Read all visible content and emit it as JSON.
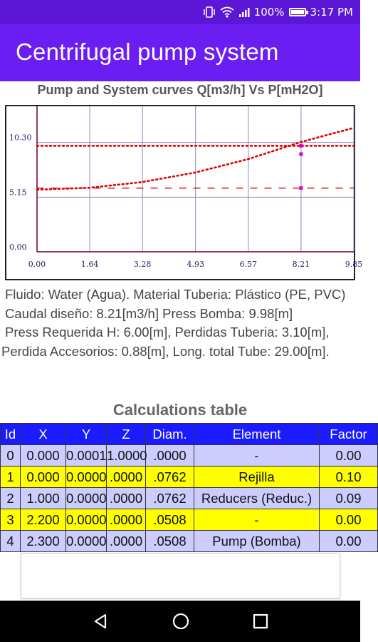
{
  "status_bar": {
    "battery": "100%",
    "time": "3:17 PM",
    "icons": [
      "vibrate-icon",
      "wifi-icon",
      "signal-icon",
      "battery-charging-icon"
    ]
  },
  "app_bar": {
    "title": "Centrifugal pump system"
  },
  "chart_data": {
    "type": "line",
    "title": "Pump and System curves Q[m3/h] Vs P[mH2O]",
    "x_ticks": [
      "0.00",
      "1.64",
      "3.28",
      "4.93",
      "6.57",
      "8.21",
      "9.85"
    ],
    "y_ticks": [
      "0.00",
      "5.15",
      "10.30"
    ],
    "xlim": [
      0,
      9.85
    ],
    "ylim": [
      0,
      13.7
    ],
    "series": [
      {
        "style": "dotted",
        "color": "#dd0000",
        "x": [
          0,
          1.64,
          3.28,
          4.93,
          6.57,
          8.21,
          9.85
        ],
        "y": [
          9.98,
          9.98,
          9.98,
          9.98,
          9.98,
          9.98,
          9.98
        ]
      },
      {
        "style": "dotted",
        "color": "#dd0000",
        "x": [
          0,
          1.64,
          3.28,
          4.93,
          6.57,
          8.21,
          9.85
        ],
        "y": [
          5.85,
          6.03,
          6.57,
          7.47,
          8.73,
          10.34,
          11.67
        ]
      },
      {
        "style": "dashed",
        "color": "#dd0000",
        "x": [
          0,
          9.85
        ],
        "y": [
          6.0,
          6.0
        ]
      }
    ],
    "markers": [
      {
        "color": "#dd00dd",
        "x": 8.21,
        "y": 9.98
      },
      {
        "color": "#dd00dd",
        "x": 8.21,
        "y": 9.2
      },
      {
        "color": "#dd00dd",
        "x": 8.21,
        "y": 6.0
      }
    ],
    "grid": true
  },
  "info": {
    "line1": "Fluido: Water (Agua). Material Tuberia: Plástico (PE, PVC)",
    "line2": "Caudal diseño: 8.21[m3/h] Press Bomba: 9.98[m]",
    "line3": "Press Requerida H: 6.00[m], Perdidas Tuberia: 3.10[m], Perdida Accesorios: 0.88[m], Long. total Tube: 29.00[m]."
  },
  "table": {
    "title": "Calculations table",
    "headers": [
      "Id",
      "X",
      "Y",
      "Z",
      "Diam.",
      "Element",
      "Factor"
    ],
    "rows": [
      [
        "0",
        "0.000",
        "0.0001",
        "1.0000",
        ".0000",
        "-",
        "0.00"
      ],
      [
        "1",
        "0.000",
        "0.0000",
        ".0000",
        ".0762",
        "Rejilla",
        "0.10"
      ],
      [
        "2",
        "1.000",
        "0.0000",
        ".0000",
        ".0762",
        "Reducers (Reduc.)",
        "0.09"
      ],
      [
        "3",
        "2.200",
        "0.0000",
        ".0000",
        ".0508",
        "-",
        "0.00"
      ],
      [
        "4",
        "2.300",
        "0.0000",
        ".0000",
        ".0508",
        "Pump (Bomba)",
        "0.00"
      ]
    ]
  },
  "nav_bar": {
    "buttons": [
      "back-icon",
      "home-icon",
      "recents-icon"
    ]
  }
}
